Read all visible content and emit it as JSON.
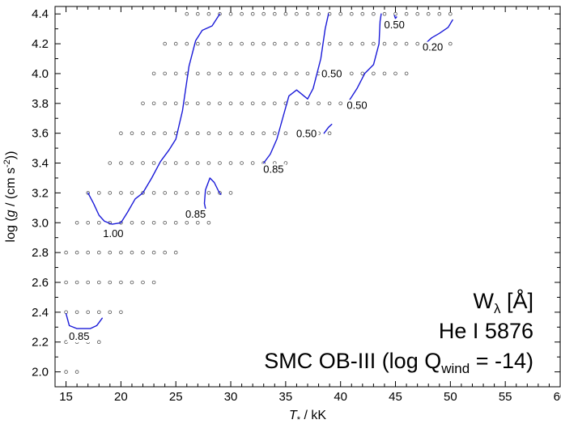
{
  "chart_data": {
    "type": "scatter",
    "xlabel": {
      "main": "T",
      "sub": "*",
      "rest": " / kK"
    },
    "ylabel": {
      "pre": "log (",
      "g": "g",
      "mid": " / (cm s",
      "sup": "-2",
      "post": "))"
    },
    "xlim": [
      14,
      60
    ],
    "ylim": [
      1.9,
      4.45
    ],
    "xticks": [
      15,
      20,
      25,
      30,
      35,
      40,
      45,
      50,
      55,
      60
    ],
    "yticks": [
      2.0,
      2.2,
      2.4,
      2.6,
      2.8,
      3.0,
      3.2,
      3.4,
      3.6,
      3.8,
      4.0,
      4.2,
      4.4
    ],
    "ytick_labels": [
      "2.0",
      "2.2",
      "2.4",
      "2.6",
      "2.8",
      "3.0",
      "3.2",
      "3.4",
      "3.6",
      "3.8",
      "4.0",
      "4.2",
      "4.4"
    ],
    "grid": false,
    "info_lines": {
      "line1": {
        "pre": "W",
        "sub": "λ",
        "post": "  [Å]"
      },
      "line2": "He I 5876",
      "line3": {
        "pre": "SMC OB-III (log Q",
        "sub": "wind",
        "post": " = -14)"
      }
    },
    "model_grid": [
      {
        "logg": 4.4,
        "teff": [
          26,
          27,
          28,
          29,
          30,
          31,
          32,
          33,
          34,
          35,
          36,
          37,
          38,
          39,
          40,
          41,
          42,
          43,
          44,
          45,
          46,
          47,
          48,
          49,
          50
        ]
      },
      {
        "logg": 4.2,
        "teff": [
          24,
          25,
          26,
          27,
          28,
          29,
          30,
          31,
          32,
          33,
          34,
          35,
          36,
          37,
          38,
          39,
          40,
          41,
          42,
          43,
          44,
          45,
          46,
          47,
          48,
          49,
          50
        ]
      },
      {
        "logg": 4.0,
        "teff": [
          23,
          24,
          25,
          26,
          27,
          28,
          29,
          30,
          31,
          32,
          33,
          34,
          35,
          36,
          37,
          38,
          39,
          40,
          41,
          42,
          43,
          44,
          45,
          46
        ]
      },
      {
        "logg": 3.8,
        "teff": [
          22,
          23,
          24,
          25,
          26,
          27,
          28,
          29,
          30,
          31,
          32,
          33,
          34,
          35,
          36,
          37,
          38,
          39,
          40,
          41,
          42
        ]
      },
      {
        "logg": 3.6,
        "teff": [
          20,
          21,
          22,
          23,
          24,
          25,
          26,
          27,
          28,
          29,
          30,
          31,
          32,
          33,
          34,
          35,
          36,
          37,
          38,
          39
        ]
      },
      {
        "logg": 3.4,
        "teff": [
          19,
          20,
          21,
          22,
          23,
          24,
          25,
          26,
          27,
          28,
          29,
          30,
          31,
          32,
          33,
          34,
          35
        ]
      },
      {
        "logg": 3.2,
        "teff": [
          17,
          18,
          19,
          20,
          21,
          22,
          23,
          24,
          25,
          26,
          27,
          28,
          29,
          30
        ]
      },
      {
        "logg": 3.0,
        "teff": [
          16,
          17,
          18,
          19,
          20,
          21,
          22,
          23,
          24,
          25,
          26,
          27,
          28
        ]
      },
      {
        "logg": 2.8,
        "teff": [
          15,
          16,
          17,
          18,
          19,
          20,
          21,
          22,
          23,
          24,
          25
        ]
      },
      {
        "logg": 2.6,
        "teff": [
          15,
          16,
          17,
          18,
          19,
          20,
          21,
          22,
          23
        ]
      },
      {
        "logg": 2.4,
        "teff": [
          15,
          16,
          17,
          18,
          19,
          20
        ]
      },
      {
        "logg": 2.2,
        "teff": [
          15,
          16,
          17,
          18
        ]
      },
      {
        "logg": 2.0,
        "teff": [
          15,
          16
        ]
      }
    ],
    "contours": [
      {
        "level": "0.85",
        "points": [
          [
            15.0,
            2.39
          ],
          [
            15.3,
            2.31
          ],
          [
            16.0,
            2.29
          ],
          [
            17.2,
            2.29
          ],
          [
            17.8,
            2.31
          ],
          [
            18.3,
            2.36
          ]
        ]
      },
      {
        "level": "1.00",
        "points": [
          [
            17.0,
            3.2
          ],
          [
            17.5,
            3.13
          ],
          [
            18.0,
            3.05
          ],
          [
            18.5,
            3.01
          ],
          [
            19.2,
            2.99
          ],
          [
            20.0,
            3.0
          ],
          [
            20.6,
            3.07
          ],
          [
            21.3,
            3.16
          ],
          [
            22.0,
            3.2
          ],
          [
            22.8,
            3.3
          ],
          [
            23.6,
            3.41
          ],
          [
            24.4,
            3.49
          ],
          [
            25.0,
            3.56
          ],
          [
            25.6,
            3.75
          ],
          [
            26.2,
            4.05
          ],
          [
            26.8,
            4.22
          ],
          [
            27.4,
            4.29
          ],
          [
            28.3,
            4.32
          ],
          [
            29.0,
            4.4
          ]
        ]
      },
      {
        "level": "0.85",
        "points": [
          [
            27.8,
            3.06
          ],
          [
            27.6,
            3.13
          ],
          [
            27.7,
            3.22
          ],
          [
            28.1,
            3.3
          ],
          [
            28.5,
            3.27
          ],
          [
            28.9,
            3.21
          ],
          [
            29.1,
            3.19
          ]
        ]
      },
      {
        "level": "0.85",
        "points": [
          [
            33.0,
            3.4
          ],
          [
            33.6,
            3.46
          ],
          [
            34.2,
            3.56
          ],
          [
            34.8,
            3.72
          ],
          [
            35.3,
            3.85
          ],
          [
            36.0,
            3.89
          ],
          [
            37.0,
            3.83
          ],
          [
            37.5,
            3.9
          ],
          [
            38.2,
            4.1
          ],
          [
            38.6,
            4.3
          ],
          [
            38.9,
            4.4
          ]
        ]
      },
      {
        "level": "0.50",
        "points": [
          [
            38.5,
            3.6
          ],
          [
            38.9,
            3.64
          ],
          [
            39.2,
            3.66
          ]
        ]
      },
      {
        "level": "0.50",
        "points": [
          [
            40.8,
            3.82
          ],
          [
            41.5,
            3.9
          ],
          [
            42.2,
            4.0
          ],
          [
            43.0,
            4.06
          ],
          [
            43.5,
            4.2
          ],
          [
            43.6,
            4.35
          ],
          [
            43.7,
            4.4
          ]
        ]
      },
      {
        "level": "0.50",
        "points": [
          [
            44.9,
            4.39
          ],
          [
            45.0,
            4.37
          ],
          [
            45.1,
            4.38
          ]
        ]
      },
      {
        "level": "0.20",
        "points": [
          [
            47.7,
            4.2
          ],
          [
            48.3,
            4.24
          ],
          [
            49.0,
            4.27
          ],
          [
            49.8,
            4.31
          ],
          [
            50.2,
            4.36
          ]
        ]
      }
    ],
    "contour_labels": [
      {
        "text": "0.85",
        "x": 16.2,
        "y": 2.22
      },
      {
        "text": "1.00",
        "x": 19.3,
        "y": 2.91
      },
      {
        "text": "0.85",
        "x": 26.8,
        "y": 3.04
      },
      {
        "text": "0.85",
        "x": 33.9,
        "y": 3.34
      },
      {
        "text": "0.50",
        "x": 39.2,
        "y": 3.98
      },
      {
        "text": "0.50",
        "x": 36.9,
        "y": 3.58
      },
      {
        "text": "0.50",
        "x": 41.5,
        "y": 3.77
      },
      {
        "text": "0.50",
        "x": 44.9,
        "y": 4.31
      },
      {
        "text": "0.20",
        "x": 48.4,
        "y": 4.16
      }
    ],
    "colors": {
      "contour": "#1a1ad8",
      "model_point": "#555555",
      "axis": "#000000"
    }
  }
}
